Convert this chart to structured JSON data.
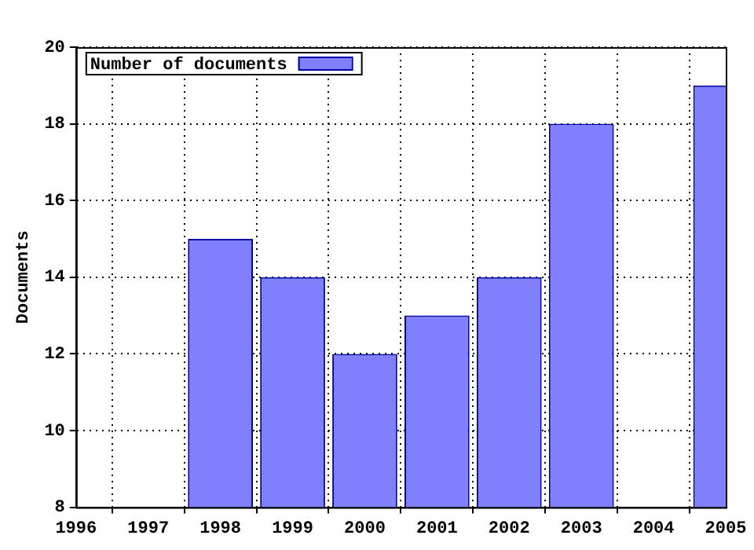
{
  "chart_data": {
    "type": "bar",
    "ylabel": "Documents",
    "x": [
      1998,
      1999,
      2000,
      2001,
      2002,
      2003,
      2005
    ],
    "series": [
      {
        "name": "Number of documents",
        "color": "#8080ff",
        "values": [
          15,
          14,
          12,
          13,
          14,
          18,
          19
        ]
      }
    ],
    "xlim": [
      1996,
      2005
    ],
    "xticks": [
      1996,
      1997,
      1998,
      1999,
      2000,
      2001,
      2002,
      2003,
      2004,
      2005
    ],
    "ylim": [
      8,
      20
    ],
    "yticks": [
      8,
      10,
      12,
      14,
      16,
      18,
      20
    ],
    "grid": true,
    "legend": "top left"
  }
}
